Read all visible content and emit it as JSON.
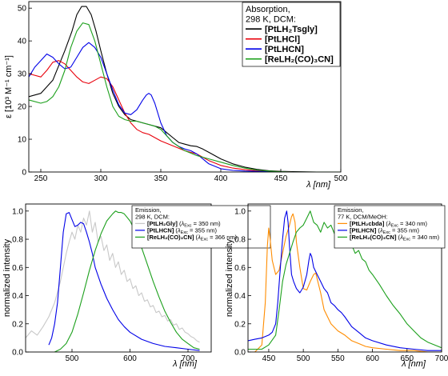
{
  "chart_data": [
    {
      "type": "line",
      "panel": "top",
      "xlabel": "λ [nm]",
      "ylabel": "ε [10³ M⁻¹ cm⁻¹]",
      "xlim": [
        240,
        500
      ],
      "ylim": [
        0,
        52
      ],
      "xticks": [
        250,
        300,
        350,
        400,
        450,
        500
      ],
      "yticks": [
        0,
        10,
        20,
        30,
        40,
        50
      ],
      "legend": {
        "placement": "top-right",
        "title_lines": [
          "Absorption,",
          "298 K, DCM:"
        ]
      },
      "series": [
        {
          "name": "[PtLH₂Tsgly]",
          "color": "#000000",
          "x": [
            240,
            250,
            260,
            270,
            276,
            280,
            284,
            288,
            292,
            296,
            300,
            305,
            310,
            315,
            320,
            325,
            330,
            335,
            340,
            345,
            350,
            355,
            360,
            365,
            370,
            375,
            380,
            385,
            390,
            395,
            400,
            410,
            420,
            430,
            440,
            450,
            460,
            480,
            500
          ],
          "y": [
            23,
            24,
            28,
            37,
            43,
            48,
            50.5,
            50.5,
            48,
            43,
            37,
            30,
            24,
            20,
            17.5,
            16,
            15.5,
            15,
            14.5,
            14,
            13.5,
            12,
            10.5,
            9,
            8.5,
            8,
            7.8,
            7,
            6,
            5,
            4,
            2.5,
            1.5,
            0.8,
            0.4,
            0.2,
            0.1,
            0,
            0
          ]
        },
        {
          "name": "[PtLHCl]",
          "color": "#e8000b",
          "x": [
            240,
            250,
            255,
            260,
            265,
            270,
            275,
            280,
            285,
            290,
            295,
            300,
            305,
            310,
            315,
            320,
            325,
            330,
            335,
            340,
            345,
            350,
            360,
            370,
            380,
            390,
            400,
            410,
            420,
            430,
            440,
            450,
            460,
            480,
            500
          ],
          "y": [
            30,
            29,
            31,
            33.5,
            34,
            33,
            31,
            29,
            27.5,
            27,
            28,
            29,
            28.5,
            26,
            22,
            18,
            15,
            13,
            12,
            11.5,
            10.5,
            9.5,
            8,
            6.5,
            5.5,
            3.5,
            2,
            1.2,
            0.7,
            0.4,
            0.2,
            0.1,
            0,
            0,
            0
          ]
        },
        {
          "name": "[PtLHCN]",
          "color": "#0000e8",
          "x": [
            240,
            245,
            250,
            255,
            260,
            265,
            270,
            275,
            280,
            285,
            290,
            295,
            300,
            305,
            310,
            315,
            320,
            325,
            330,
            335,
            338,
            340,
            342,
            345,
            350,
            355,
            360,
            365,
            370,
            375,
            380,
            385,
            390,
            400,
            410,
            420,
            440,
            460,
            500
          ],
          "y": [
            29,
            32,
            34,
            36,
            35,
            33,
            31.5,
            32,
            35,
            38,
            39.5,
            38,
            35,
            30,
            25,
            20.5,
            18,
            17.5,
            19,
            22,
            23.5,
            24,
            23.5,
            21,
            15,
            11,
            9,
            7.8,
            7,
            6.5,
            5.5,
            4,
            2.5,
            1,
            0.5,
            0.3,
            0.1,
            0,
            0
          ]
        },
        {
          "name": "[ReLH₂(CO)₃CN]",
          "color": "#1ca01c",
          "x": [
            240,
            250,
            255,
            260,
            265,
            270,
            275,
            280,
            285,
            290,
            295,
            300,
            305,
            310,
            315,
            320,
            325,
            330,
            335,
            340,
            345,
            350,
            355,
            360,
            370,
            380,
            390,
            400,
            410,
            420,
            430,
            440,
            450,
            460,
            480,
            500
          ],
          "y": [
            22,
            21,
            21.5,
            23,
            26,
            31,
            38,
            43,
            45.5,
            45,
            40,
            33,
            26,
            20,
            17,
            16,
            15.5,
            15.5,
            15,
            14.5,
            14,
            13,
            11,
            9,
            6.5,
            5,
            4,
            3,
            2,
            1.2,
            0.6,
            0.3,
            0.1,
            0,
            0,
            0
          ]
        }
      ]
    },
    {
      "type": "line",
      "panel": "bottom-left",
      "xlabel": "λ [nm]",
      "ylabel": "normalized intensity",
      "xlim": [
        420,
        740
      ],
      "ylim": [
        0,
        1.05
      ],
      "xticks": [
        500,
        600,
        700
      ],
      "yticks": [
        0.0,
        0.2,
        0.4,
        0.6,
        0.8,
        1.0
      ],
      "legend": {
        "placement": "top-right",
        "title_lines": [
          "Emission,",
          "298 K, DCM:"
        ]
      },
      "series": [
        {
          "name": "[PtLH₂Gly]",
          "excitation": "350 nm",
          "color": "#c8c8c8",
          "x": [
            420,
            430,
            440,
            450,
            460,
            470,
            480,
            490,
            495,
            500,
            505,
            510,
            515,
            520,
            525,
            530,
            535,
            540,
            545,
            550,
            555,
            560,
            565,
            570,
            575,
            580,
            585,
            590,
            595,
            600,
            605,
            610,
            615,
            620,
            625,
            630,
            635,
            640,
            645,
            650,
            655,
            660,
            665,
            670,
            675,
            680,
            685,
            690,
            695,
            700,
            705,
            710,
            715,
            720
          ],
          "y": [
            0.1,
            0.15,
            0.12,
            0.18,
            0.25,
            0.35,
            0.5,
            0.7,
            0.78,
            0.85,
            0.8,
            0.9,
            0.85,
            0.95,
            0.9,
            1.0,
            0.85,
            0.92,
            0.78,
            0.82,
            0.72,
            0.76,
            0.65,
            0.7,
            0.6,
            0.64,
            0.55,
            0.58,
            0.5,
            0.52,
            0.45,
            0.47,
            0.4,
            0.42,
            0.36,
            0.37,
            0.32,
            0.33,
            0.28,
            0.29,
            0.25,
            0.26,
            0.22,
            0.23,
            0.19,
            0.2,
            0.16,
            0.17,
            0.14,
            0.13,
            0.11,
            0.1,
            0.08,
            0.07
          ]
        },
        {
          "name": "[PtLHCN]",
          "excitation": "355 nm",
          "color": "#0000e8",
          "x": [
            460,
            465,
            470,
            475,
            480,
            485,
            490,
            495,
            500,
            505,
            510,
            515,
            520,
            525,
            530,
            535,
            540,
            550,
            560,
            570,
            580,
            590,
            600,
            620,
            640,
            660,
            680,
            700,
            720
          ],
          "y": [
            0.05,
            0.1,
            0.2,
            0.35,
            0.6,
            0.85,
            0.98,
            0.99,
            0.94,
            0.89,
            0.9,
            0.92,
            0.91,
            0.85,
            0.78,
            0.7,
            0.6,
            0.48,
            0.38,
            0.3,
            0.23,
            0.18,
            0.14,
            0.09,
            0.06,
            0.04,
            0.03,
            0.02,
            0.01
          ]
        },
        {
          "name": "[ReLH₂(CO)₃CN]",
          "excitation": "366 nm",
          "color": "#1ca01c",
          "x": [
            470,
            480,
            490,
            500,
            510,
            520,
            530,
            540,
            550,
            560,
            570,
            575,
            580,
            585,
            590,
            600,
            610,
            620,
            630,
            640,
            650,
            660,
            670,
            680,
            690,
            700,
            710,
            720
          ],
          "y": [
            0.0,
            0.02,
            0.06,
            0.14,
            0.27,
            0.42,
            0.58,
            0.72,
            0.84,
            0.93,
            0.98,
            1.0,
            0.99,
            0.99,
            0.98,
            0.93,
            0.85,
            0.74,
            0.62,
            0.5,
            0.39,
            0.29,
            0.21,
            0.14,
            0.09,
            0.06,
            0.03,
            0.02
          ]
        }
      ]
    },
    {
      "type": "line",
      "panel": "bottom-right",
      "xlabel": "λ [nm]",
      "ylabel": "normalized intensity",
      "xlim": [
        420,
        700
      ],
      "ylim": [
        0,
        1.05
      ],
      "xticks": [
        450,
        500,
        550,
        600,
        650,
        700
      ],
      "yticks": [
        0.0,
        0.2,
        0.4,
        0.6,
        0.8,
        1.0
      ],
      "legend": {
        "placement": "top-right",
        "title_lines": [
          "Emission,",
          "77 K, DCM/MeOH:"
        ]
      },
      "series": [
        {
          "name": "[PtLH₂cbda]",
          "excitation": "340 nm",
          "color": "#ff8c00",
          "x": [
            420,
            430,
            440,
            445,
            448,
            450,
            452,
            455,
            460,
            465,
            470,
            475,
            480,
            483,
            485,
            488,
            490,
            495,
            500,
            505,
            510,
            515,
            518,
            520,
            525,
            530,
            540,
            550,
            560,
            570,
            580,
            590,
            600,
            620,
            640,
            660,
            680,
            700
          ],
          "y": [
            0,
            0,
            0.05,
            0.35,
            0.75,
            0.88,
            0.8,
            0.65,
            0.55,
            0.58,
            0.7,
            0.82,
            0.9,
            0.96,
            0.98,
            0.92,
            0.78,
            0.6,
            0.45,
            0.44,
            0.5,
            0.55,
            0.56,
            0.52,
            0.42,
            0.3,
            0.2,
            0.15,
            0.12,
            0.08,
            0.06,
            0.04,
            0.03,
            0.02,
            0.01,
            0.01,
            0.0,
            0.0
          ]
        },
        {
          "name": "[PtLHCN]",
          "excitation": "355 nm",
          "color": "#0000e8",
          "x": [
            420,
            430,
            440,
            450,
            455,
            460,
            463,
            466,
            470,
            473,
            476,
            478,
            480,
            483,
            486,
            490,
            495,
            500,
            505,
            508,
            510,
            512,
            515,
            520,
            525,
            530,
            535,
            540,
            545,
            550,
            555,
            560,
            570,
            580,
            590,
            600,
            620,
            640,
            660,
            680,
            700
          ],
          "y": [
            0.08,
            0.09,
            0.1,
            0.12,
            0.14,
            0.2,
            0.35,
            0.55,
            0.8,
            0.95,
            1.0,
            0.92,
            0.75,
            0.55,
            0.5,
            0.45,
            0.42,
            0.46,
            0.55,
            0.65,
            0.7,
            0.68,
            0.6,
            0.55,
            0.5,
            0.45,
            0.42,
            0.35,
            0.33,
            0.3,
            0.28,
            0.25,
            0.18,
            0.14,
            0.1,
            0.08,
            0.05,
            0.03,
            0.02,
            0.01,
            0.01
          ]
        },
        {
          "name": "[ReLH₂(CO)₃CN]",
          "excitation": "340 nm",
          "color": "#1ca01c",
          "x": [
            420,
            440,
            450,
            460,
            465,
            470,
            475,
            480,
            485,
            490,
            495,
            500,
            505,
            510,
            515,
            520,
            525,
            530,
            535,
            540,
            545,
            550,
            555,
            560,
            565,
            570,
            575,
            580,
            585,
            590,
            595,
            600,
            610,
            620,
            630,
            640,
            650,
            660,
            670,
            680,
            690,
            700
          ],
          "y": [
            0.02,
            0.02,
            0.05,
            0.12,
            0.3,
            0.5,
            0.62,
            0.7,
            0.78,
            0.85,
            0.88,
            0.9,
            0.95,
            1.0,
            0.92,
            0.9,
            0.85,
            0.92,
            0.88,
            0.9,
            0.84,
            0.86,
            0.8,
            0.82,
            0.75,
            0.76,
            0.7,
            0.72,
            0.66,
            0.64,
            0.58,
            0.55,
            0.48,
            0.4,
            0.33,
            0.27,
            0.2,
            0.15,
            0.1,
            0.07,
            0.05,
            0.03
          ]
        }
      ]
    }
  ]
}
